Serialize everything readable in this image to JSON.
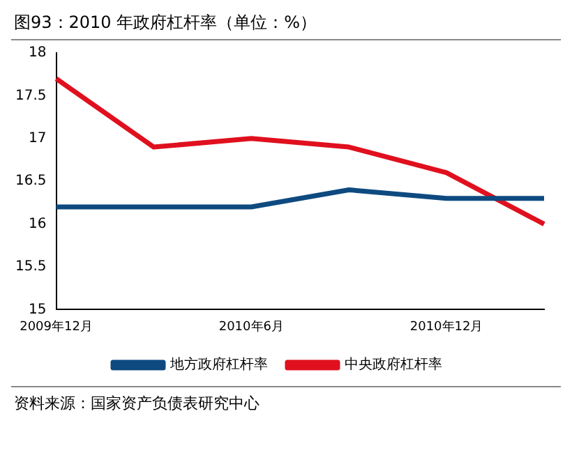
{
  "chart_data": {
    "type": "line",
    "title": "图93：2010 年政府杠杆率（单位：%）",
    "categories": [
      "2009年12月",
      null,
      "2010年6月",
      null,
      "2010年12月",
      null
    ],
    "series": [
      {
        "name": "地方政府杠杆率",
        "color": "#0e4a80",
        "values": [
          16.2,
          16.2,
          16.2,
          16.4,
          16.3,
          16.3
        ]
      },
      {
        "name": "中央政府杠杆率",
        "color": "#e0101e",
        "values": [
          17.7,
          16.9,
          17.0,
          16.9,
          16.6,
          16.0
        ]
      }
    ],
    "ylim": [
      15,
      18
    ],
    "yticks": [
      15,
      15.5,
      16,
      16.5,
      17,
      17.5,
      18
    ],
    "legend": "bottom",
    "marker": "none",
    "line_style": "solid",
    "annotations": [
      "资料来源：国家资产负债表研究中心"
    ]
  }
}
